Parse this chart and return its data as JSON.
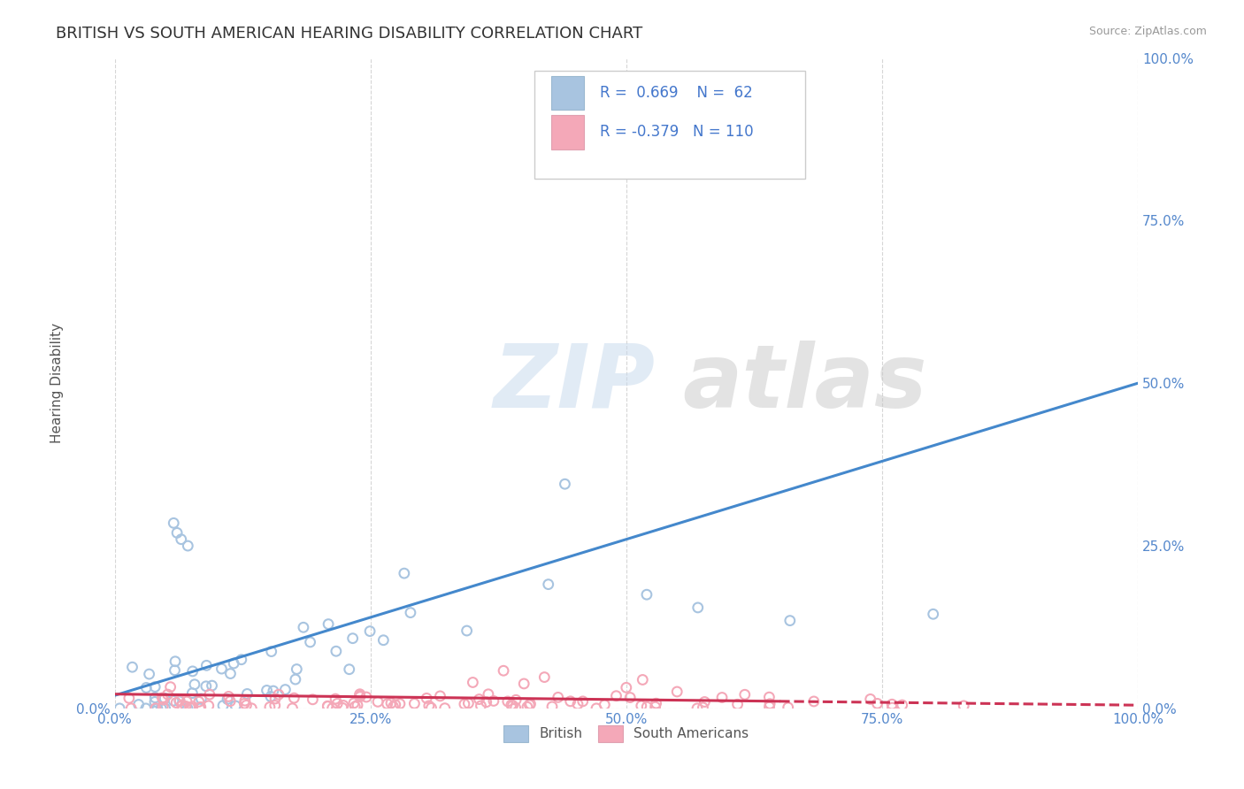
{
  "title": "BRITISH VS SOUTH AMERICAN HEARING DISABILITY CORRELATION CHART",
  "source": "Source: ZipAtlas.com",
  "ylabel": "Hearing Disability",
  "watermark_zip": "ZIP",
  "watermark_atlas": "atlas",
  "british_R": 0.669,
  "british_N": 62,
  "southam_R": -0.379,
  "southam_N": 110,
  "british_color": "#a8c4e0",
  "southam_color": "#f4a8b8",
  "british_line_color": "#4488cc",
  "southam_line_color": "#cc3355",
  "title_color": "#333333",
  "legend_text_color": "#4477cc",
  "axis_label_color": "#555555",
  "tick_color": "#5588cc",
  "grid_color": "#cccccc",
  "background_color": "#ffffff",
  "title_fontsize": 13,
  "axis_fontsize": 11,
  "tick_fontsize": 11,
  "legend_fontsize": 12,
  "xlim": [
    0.0,
    1.0
  ],
  "ylim": [
    0.0,
    1.0
  ],
  "right_ytick_values": [
    0.0,
    0.25,
    0.5,
    0.75,
    1.0
  ],
  "right_ytick_labels": [
    "0.0%",
    "25.0%",
    "50.0%",
    "75.0%",
    "100.0%"
  ],
  "xtick_values": [
    0.0,
    0.25,
    0.5,
    0.75,
    1.0
  ],
  "xtick_labels": [
    "0.0%",
    "25.0%",
    "50.0%",
    "75.0%",
    "100.0%"
  ],
  "left_ytick_values": [
    0.0
  ],
  "left_ytick_labels": [
    "0.0%"
  ],
  "british_line_x": [
    0.0,
    1.0
  ],
  "british_line_y": [
    0.02,
    0.5
  ],
  "southam_line_x": [
    0.0,
    1.0
  ],
  "southam_line_y": [
    0.022,
    0.005
  ],
  "legend_labels": [
    "British",
    "South Americans"
  ]
}
